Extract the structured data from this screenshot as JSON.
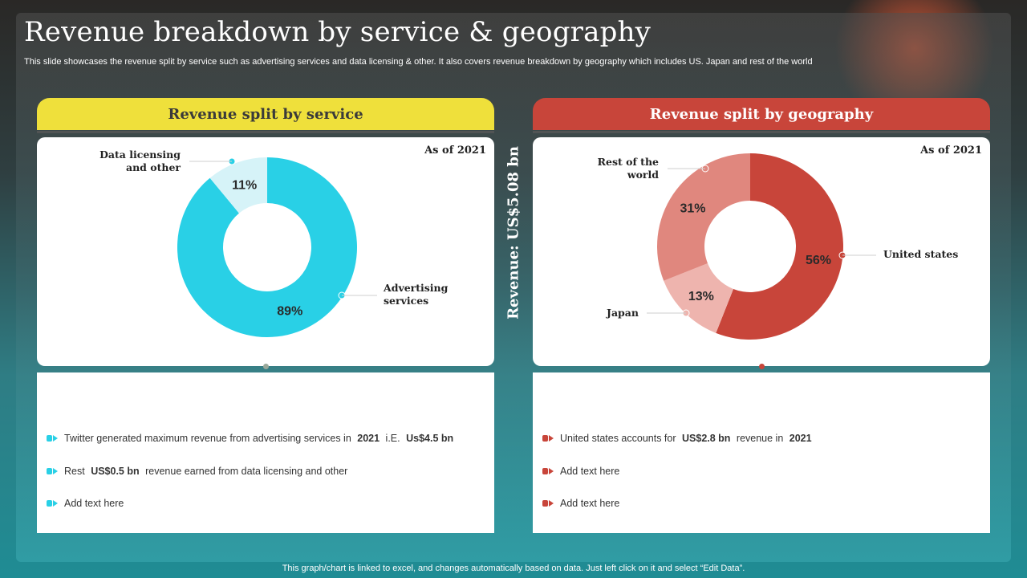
{
  "title": "Revenue breakdown by service & geography",
  "subtitle": "This slide showcases the revenue split by service such as advertising services and data licensing & other. It also covers revenue breakdown by geography which includes US. Japan and rest of the world",
  "vertical_label": "Revenue:  US$5.08 bn",
  "footer": "This graph/chart is linked to excel,  and changes automatically based on data. Just left click on it and select “Edit Data”.",
  "colors": {
    "service_primary": "#29d0e6",
    "service_light": "#d6f3f8",
    "geo_us": "#c8453a",
    "geo_rest": "#e0877e",
    "geo_japan": "#eeb4ae",
    "header_yellow": "#efe03b",
    "header_red": "#c8453a"
  },
  "left_panel": {
    "header": "Revenue split by service",
    "as_of": "As of 2021",
    "bullets": [
      {
        "parts": [
          {
            "t": "Twitter generated maximum revenue  from advertising  services  in ",
            "b": false
          },
          {
            "t": "2021",
            "b": true
          },
          {
            "t": " i.E. ",
            "b": false
          },
          {
            "t": "Us$4.5  bn",
            "b": true
          }
        ]
      },
      {
        "parts": [
          {
            "t": "Rest ",
            "b": false
          },
          {
            "t": "US$0.5  bn",
            "b": true
          },
          {
            "t": " revenue  earned from data licensing and other",
            "b": false
          }
        ]
      },
      {
        "parts": [
          {
            "t": "Add text here",
            "b": false
          }
        ]
      }
    ]
  },
  "right_panel": {
    "header": "Revenue split by geography",
    "as_of": "As of 2021",
    "bullets": [
      {
        "parts": [
          {
            "t": "United states accounts for ",
            "b": false
          },
          {
            "t": "US$2.8 bn",
            "b": true
          },
          {
            "t": " revenue  in ",
            "b": false
          },
          {
            "t": "2021",
            "b": true
          }
        ]
      },
      {
        "parts": [
          {
            "t": "Add text here",
            "b": false
          }
        ]
      },
      {
        "parts": [
          {
            "t": "Add text here",
            "b": false
          }
        ]
      }
    ]
  },
  "chart_data": [
    {
      "type": "pie",
      "title": "Revenue split by service",
      "categories": [
        "Advertising services",
        "Data licensing and other"
      ],
      "label_lines": [
        [
          "Advertising",
          "services"
        ],
        [
          "Data licensing",
          "and other"
        ]
      ],
      "values": [
        89,
        11
      ],
      "value_labels": [
        "89%",
        "11%"
      ],
      "colors": [
        "#29d0e6",
        "#d6f3f8"
      ],
      "donut": true
    },
    {
      "type": "pie",
      "title": "Revenue split by geography",
      "categories": [
        "United states",
        "Japan",
        "Rest of the world"
      ],
      "label_lines": [
        [
          "United states"
        ],
        [
          "Japan"
        ],
        [
          "Rest of the",
          "world"
        ]
      ],
      "values": [
        56,
        13,
        31
      ],
      "value_labels": [
        "56%",
        "13%",
        "31%"
      ],
      "colors": [
        "#c8453a",
        "#eeb4ae",
        "#e0877e"
      ],
      "donut": true
    }
  ]
}
